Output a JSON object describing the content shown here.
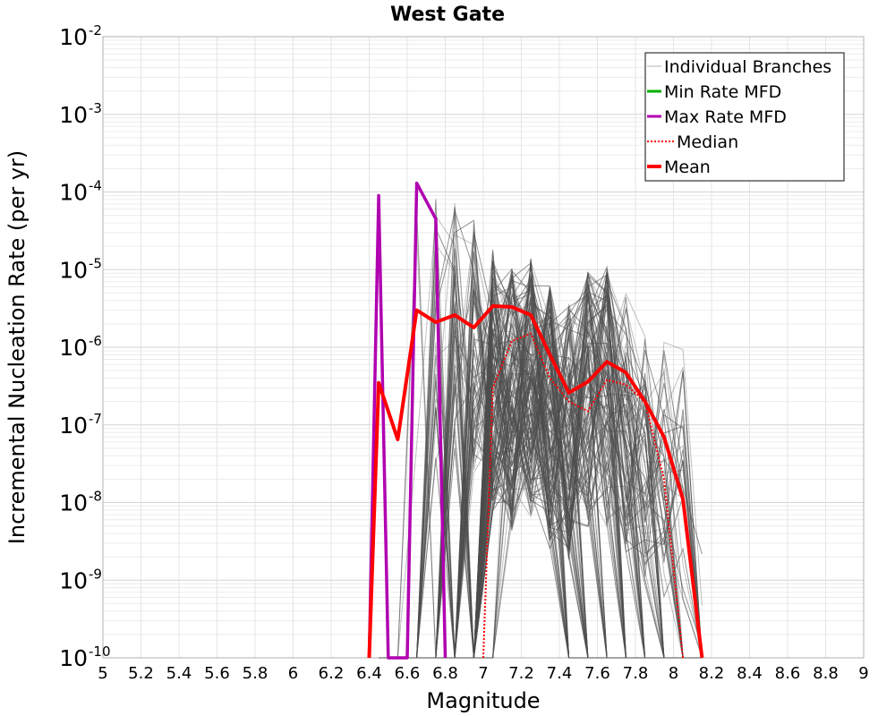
{
  "chart_data": {
    "type": "line",
    "title": "West Gate",
    "xlabel": "Magnitude",
    "ylabel": "Incremental Nucleation Rate (per yr)",
    "xlim": [
      5,
      9
    ],
    "ylim": [
      1e-10,
      0.01
    ],
    "y_scale": "log",
    "grid": true,
    "legend_position": "top-right",
    "x_ticks": [
      "5",
      "5.2",
      "5.4",
      "5.6",
      "5.8",
      "6",
      "6.2",
      "6.4",
      "6.6",
      "6.8",
      "7",
      "7.2",
      "7.4",
      "7.6",
      "7.8",
      "8",
      "8.2",
      "8.4",
      "8.6",
      "8.8",
      "9"
    ],
    "y_ticks": [
      {
        "base": "10",
        "exp": "-10",
        "value": 1e-10
      },
      {
        "base": "10",
        "exp": "-9",
        "value": 1e-09
      },
      {
        "base": "10",
        "exp": "-8",
        "value": 1e-08
      },
      {
        "base": "10",
        "exp": "-7",
        "value": 1e-07
      },
      {
        "base": "10",
        "exp": "-6",
        "value": 1e-06
      },
      {
        "base": "10",
        "exp": "-5",
        "value": 1e-05
      },
      {
        "base": "10",
        "exp": "-4",
        "value": 0.0001
      },
      {
        "base": "10",
        "exp": "-3",
        "value": 0.001
      },
      {
        "base": "10",
        "exp": "-2",
        "value": 0.01
      }
    ],
    "series": [
      {
        "name": "Individual Branches",
        "color": "#4d4d4d",
        "style": "thin",
        "note_count_approx": 150,
        "magnitudes": [
          6.45,
          6.55,
          6.65,
          6.75,
          6.85,
          6.95,
          7.05,
          7.15,
          7.25,
          7.35,
          7.45,
          7.55,
          7.65,
          7.75,
          7.85,
          7.95,
          8.05,
          8.15
        ],
        "envelope_max": [
          9e-05,
          5.5e-05,
          0.00013,
          0.00013,
          0.00013,
          8e-05,
          3e-05,
          1.7e-05,
          2.3e-05,
          1e-05,
          6e-06,
          1.5e-05,
          1.8e-05,
          8e-06,
          2.5e-06,
          2e-06,
          1.5e-06,
          3e-08
        ]
      },
      {
        "name": "Min Rate MFD",
        "color": "#00b000",
        "points": []
      },
      {
        "name": "Max Rate MFD",
        "color": "#b000b0",
        "points": [
          [
            6.4,
            1e-10
          ],
          [
            6.45,
            9e-05
          ],
          [
            6.5,
            1e-10
          ],
          [
            6.6,
            1e-10
          ],
          [
            6.65,
            0.00013
          ],
          [
            6.75,
            4.5e-05
          ],
          [
            6.8,
            1e-10
          ]
        ]
      },
      {
        "name": "Median",
        "color": "#ff0000",
        "style": "dotted",
        "points": [
          [
            7.0,
            1e-10
          ],
          [
            7.05,
            3e-07
          ],
          [
            7.15,
            1.2e-06
          ],
          [
            7.25,
            1.5e-06
          ],
          [
            7.35,
            4e-07
          ],
          [
            7.45,
            2e-07
          ],
          [
            7.55,
            1.5e-07
          ],
          [
            7.65,
            3.8e-07
          ],
          [
            7.75,
            3.3e-07
          ],
          [
            7.85,
            2e-07
          ],
          [
            7.95,
            2e-08
          ],
          [
            8.05,
            1e-10
          ]
        ]
      },
      {
        "name": "Mean",
        "color": "#ff0000",
        "style": "thick",
        "points": [
          [
            6.4,
            1e-10
          ],
          [
            6.45,
            3.5e-07
          ],
          [
            6.55,
            6.5e-08
          ],
          [
            6.65,
            3e-06
          ],
          [
            6.75,
            2.1e-06
          ],
          [
            6.85,
            2.6e-06
          ],
          [
            6.95,
            1.8e-06
          ],
          [
            7.05,
            3.4e-06
          ],
          [
            7.15,
            3.3e-06
          ],
          [
            7.25,
            2.6e-06
          ],
          [
            7.35,
            8e-07
          ],
          [
            7.45,
            2.6e-07
          ],
          [
            7.55,
            3.6e-07
          ],
          [
            7.65,
            6.5e-07
          ],
          [
            7.75,
            4.7e-07
          ],
          [
            7.85,
            2e-07
          ],
          [
            7.95,
            7e-08
          ],
          [
            8.05,
            1.1e-08
          ],
          [
            8.15,
            1e-10
          ]
        ]
      }
    ]
  }
}
